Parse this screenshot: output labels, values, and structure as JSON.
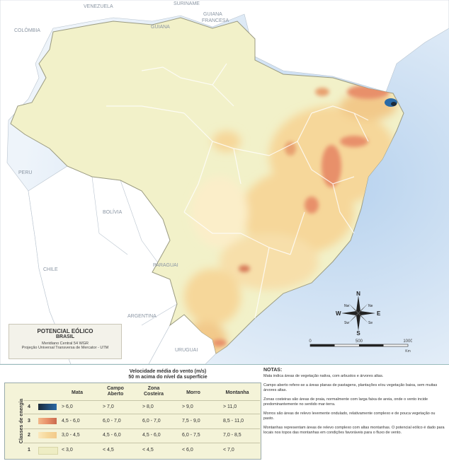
{
  "countries": {
    "venezuela": "VENEZUELA",
    "suriname": "SURINAME",
    "guiana_francesa_1": "GUIANA",
    "guiana_francesa_2": "FRANCESA",
    "guiana": "GUIANA",
    "colombia": "COLÔMBIA",
    "peru": "PERU",
    "bolivia": "BOLÍVIA",
    "chile": "CHILE",
    "paraguai": "PARAGUAI",
    "argentina": "ARGENTINA",
    "uruguai": "URUGUAI"
  },
  "title_box": {
    "line1": "POTENCIAL EÓLICO",
    "line2": "BRASIL",
    "line3": "Meridiano Central 54 WGR",
    "line4": "Projeção Universal Transversa de Mercator - UTM"
  },
  "compass": {
    "n": "N",
    "s": "S",
    "e": "E",
    "w": "W",
    "nw": "Nw",
    "ne": "Ne",
    "sw": "Sw",
    "se": "Se"
  },
  "scale": {
    "zero": "0",
    "mid": "500",
    "max": "1000",
    "unit": "Km"
  },
  "legend": {
    "title1": "Velocidade média do vento (m/s)",
    "title2": "50 m acima do nível da superfície",
    "vertical_label": "Classes de energia",
    "columns": [
      "Mata",
      "Campo Aberto",
      "Zona Costeira",
      "Morro",
      "Montanha"
    ],
    "rows": [
      {
        "class": "4",
        "values": [
          "> 6,0",
          "> 7,0",
          "> 8,0",
          "> 9,0",
          "> 11,0"
        ]
      },
      {
        "class": "3",
        "values": [
          "4,5 - 6,0",
          "6,0 - 7,0",
          "6,0 - 7,0",
          "7,5 - 9,0",
          "8,5 - 11,0"
        ]
      },
      {
        "class": "2",
        "values": [
          "3,0 - 4,5",
          "4,5 - 6,0",
          "4,5 - 6,0",
          "6,0 - 7,5",
          "7,0 - 8,5"
        ]
      },
      {
        "class": "1",
        "values": [
          "< 3,0",
          "< 4,5",
          "< 4,5",
          "< 6,0",
          "< 7,0"
        ]
      }
    ]
  },
  "notes": {
    "title": "NOTAS:",
    "items": [
      "Mata indica áreas de vegetação nativa, com arbustos e árvores altas.",
      "Campo aberto refere-se a áreas planas de pastagens, plantações e/ou vegetação baixa, sem muitas árvores altas.",
      "Zonas costeiras são áreas de praia, normalmente com larga faixa de areia, onde o vento incide predominantemente no sentido mar-terra.",
      "Morros são áreas de relevo levemente ondulado, relativamente complexo e de pouca vegetação ou pasto.",
      "Montanhas representam áreas de relevo complexo com altas montanhas. O potencial eólico é dado para locais nos topos das montanhas em condições favoráveis para o fluxo de vento."
    ]
  },
  "colors": {
    "ocean": "#dfeaf5",
    "neighbor_land": "#ffffff",
    "class1": "#f2f1c9",
    "class2": "#f6d79a",
    "class3": "#e8906a",
    "class4_dark": "#1b2a3a",
    "class4_blue": "#2b6aa6"
  }
}
